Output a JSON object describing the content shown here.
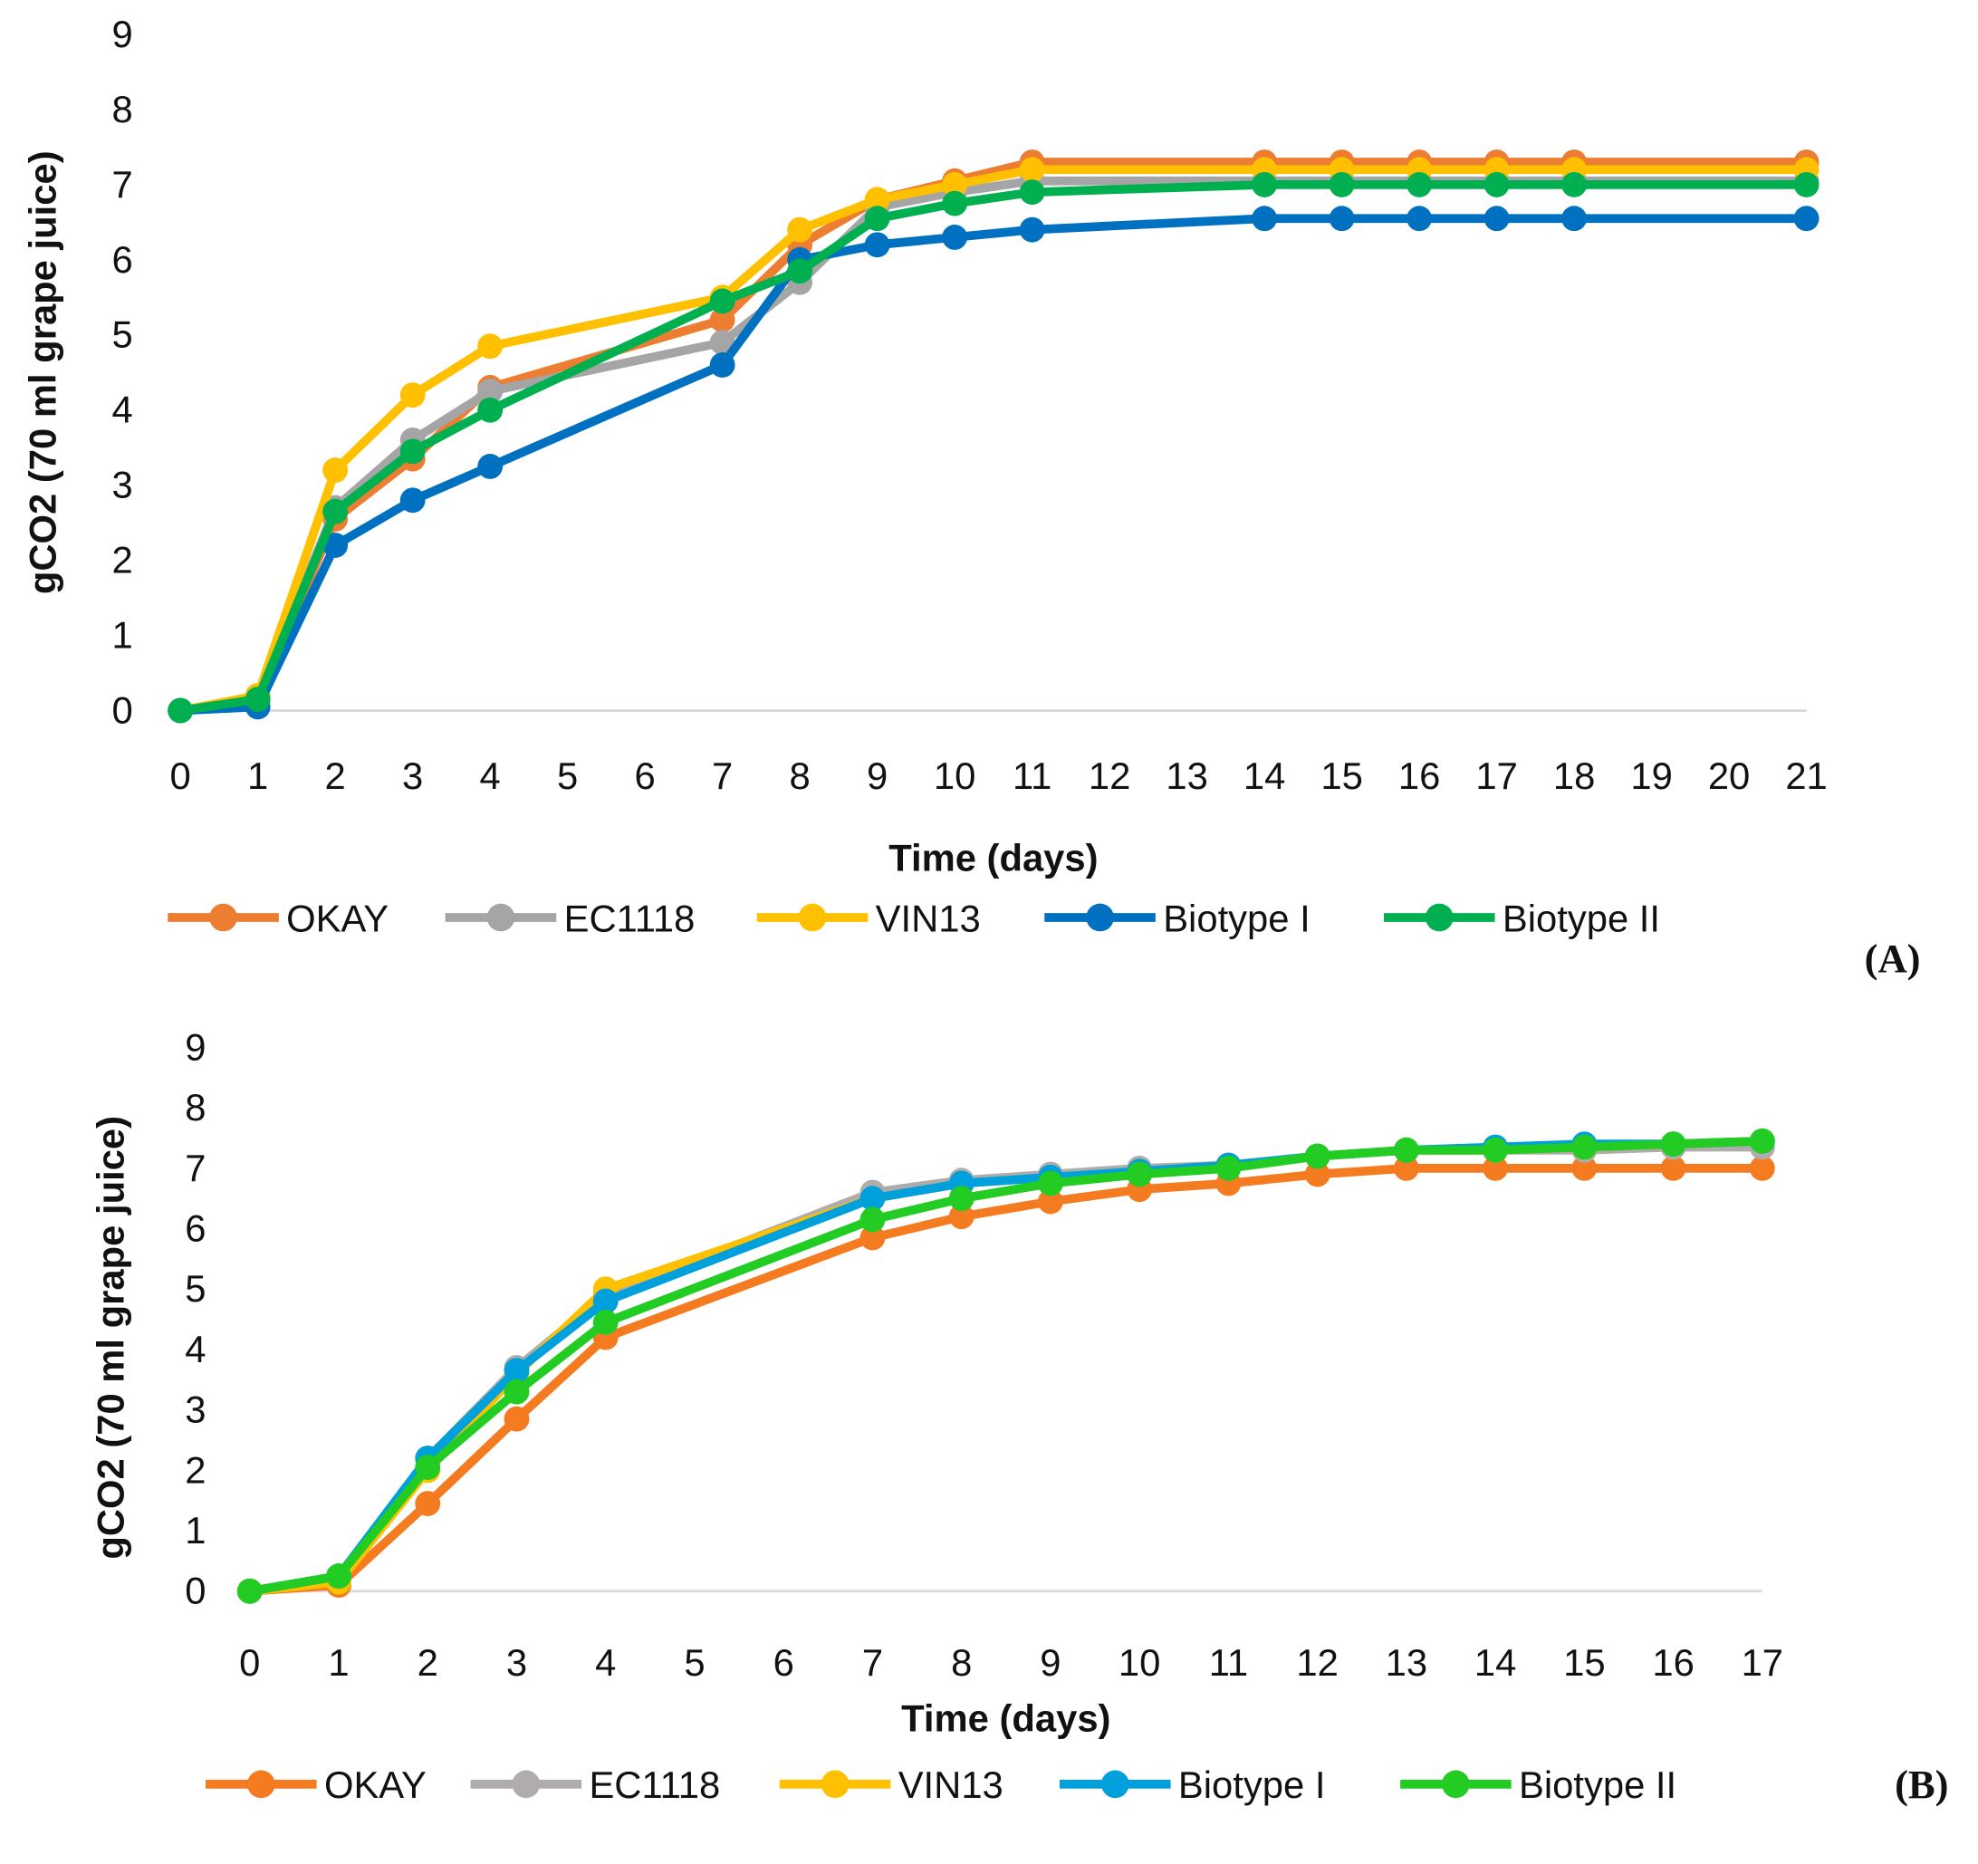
{
  "chart_data": [
    {
      "type": "line",
      "panel_label": "(A)",
      "xlabel": "Time (days)",
      "ylabel": "gCO2 (70 ml grape juice)",
      "ylim": [
        0,
        9
      ],
      "xlim": [
        0,
        21
      ],
      "x_ticks": [
        "0",
        "1",
        "2",
        "3",
        "4",
        "5",
        "6",
        "7",
        "8",
        "9",
        "10",
        "11",
        "12",
        "13",
        "14",
        "15",
        "16",
        "17",
        "18",
        "19",
        "20",
        "21"
      ],
      "y_ticks": [
        "0",
        "1",
        "2",
        "3",
        "4",
        "5",
        "6",
        "7",
        "8",
        "9"
      ],
      "legend_position": "bottom",
      "x": [
        0,
        1,
        2,
        3,
        4,
        7,
        8,
        9,
        10,
        11,
        14,
        15,
        16,
        17,
        18,
        21
      ],
      "series": [
        {
          "name": "OKAY",
          "color": "#ED7D31",
          "values": [
            0,
            0.15,
            2.55,
            3.35,
            4.3,
            5.2,
            6.2,
            6.8,
            7.05,
            7.3,
            7.3,
            7.3,
            7.3,
            7.3,
            7.3,
            7.3
          ]
        },
        {
          "name": "EC1118",
          "color": "#A5A5A5",
          "values": [
            0,
            0.15,
            2.7,
            3.6,
            4.25,
            4.9,
            5.7,
            6.7,
            6.9,
            7.05,
            7.05,
            7.05,
            7.05,
            7.05,
            7.05,
            7.05
          ]
        },
        {
          "name": "VIN13",
          "color": "#FFC000",
          "values": [
            0,
            0.2,
            3.2,
            4.2,
            4.85,
            5.5,
            6.4,
            6.8,
            7.0,
            7.2,
            7.2,
            7.2,
            7.2,
            7.2,
            7.2,
            7.2
          ]
        },
        {
          "name": "Biotype I",
          "color": "#0070C0",
          "values": [
            0,
            0.05,
            2.2,
            2.8,
            3.25,
            4.6,
            6.0,
            6.2,
            6.3,
            6.4,
            6.55,
            6.55,
            6.55,
            6.55,
            6.55,
            6.55
          ]
        },
        {
          "name": "Biotype II",
          "color": "#00B050",
          "values": [
            0,
            0.15,
            2.65,
            3.45,
            4.0,
            5.45,
            5.85,
            6.55,
            6.75,
            6.9,
            7.0,
            7.0,
            7.0,
            7.0,
            7.0,
            7.0
          ]
        }
      ]
    },
    {
      "type": "line",
      "panel_label": "(B)",
      "xlabel": "Time (days)",
      "ylabel": "gCO2 (70 ml grape juice)",
      "ylim": [
        0,
        9
      ],
      "xlim": [
        0,
        17
      ],
      "x_ticks": [
        "0",
        "1",
        "2",
        "3",
        "4",
        "5",
        "6",
        "7",
        "8",
        "9",
        "10",
        "11",
        "12",
        "13",
        "14",
        "15",
        "16",
        "17"
      ],
      "y_ticks": [
        "0",
        "1",
        "2",
        "3",
        "4",
        "5",
        "6",
        "7",
        "8",
        "9"
      ],
      "legend_position": "bottom",
      "x": [
        0,
        1,
        2,
        3,
        4,
        7,
        8,
        9,
        10,
        11,
        12,
        13,
        14,
        15,
        16,
        17
      ],
      "series": [
        {
          "name": "OKAY",
          "color": "#F47B20",
          "values": [
            0,
            0.1,
            1.45,
            2.85,
            4.2,
            5.85,
            6.2,
            6.45,
            6.65,
            6.75,
            6.9,
            7.0,
            7.0,
            7.0,
            7.0,
            7.0
          ]
        },
        {
          "name": "EC1118",
          "color": "#B0ACAC",
          "values": [
            0,
            0.2,
            2.2,
            3.7,
            4.9,
            6.6,
            6.8,
            6.9,
            7.0,
            7.05,
            7.2,
            7.3,
            7.3,
            7.3,
            7.35,
            7.35
          ]
        },
        {
          "name": "VIN13",
          "color": "#FFC000",
          "values": [
            0,
            0.15,
            2.0,
            3.6,
            5.0,
            6.5,
            6.75,
            6.85,
            6.95,
            7.05,
            7.2,
            7.3,
            7.3,
            7.35,
            7.4,
            7.45
          ]
        },
        {
          "name": "Biotype I",
          "color": "#00A0DC",
          "values": [
            0,
            0.25,
            2.2,
            3.65,
            4.8,
            6.5,
            6.75,
            6.85,
            6.95,
            7.05,
            7.2,
            7.3,
            7.35,
            7.4,
            7.4,
            7.45
          ]
        },
        {
          "name": "Biotype II",
          "color": "#22CC22",
          "values": [
            0,
            0.25,
            2.05,
            3.3,
            4.45,
            6.15,
            6.5,
            6.75,
            6.9,
            7.0,
            7.2,
            7.3,
            7.3,
            7.35,
            7.4,
            7.45
          ]
        }
      ]
    }
  ]
}
